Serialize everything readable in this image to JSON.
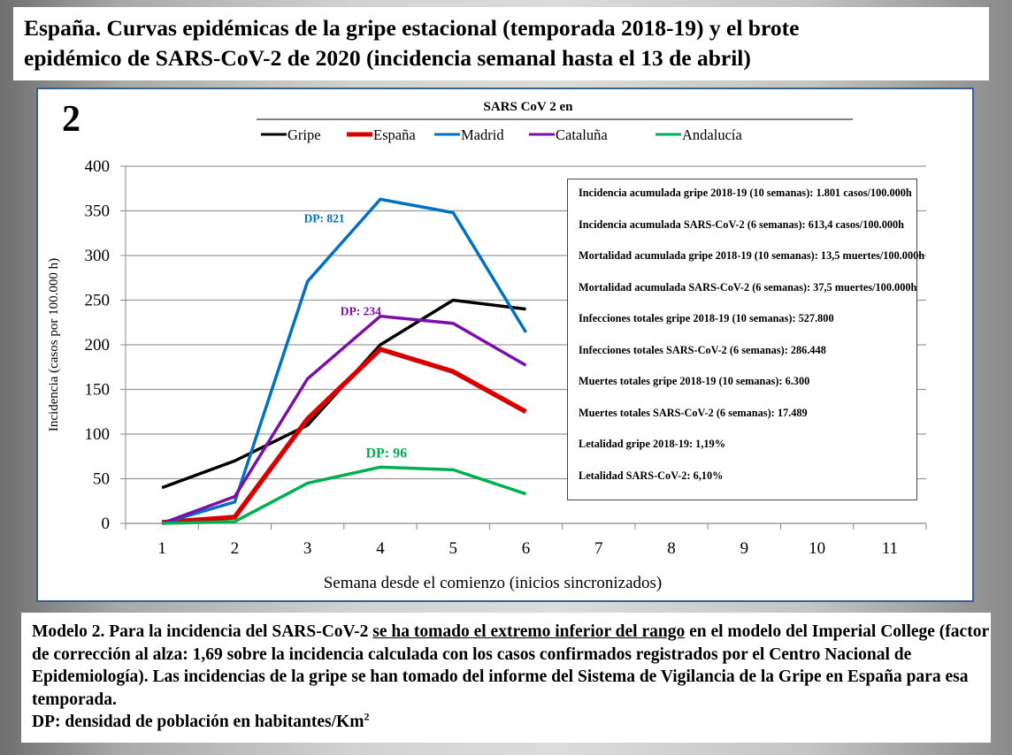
{
  "header": {
    "title_line1": "España. Curvas epidémicas de la gripe estacional (temporada 2018-19) y el brote",
    "title_line2": "epidémico de SARS-CoV-2  de 2020 (incidencia semanal hasta el 13 de abril)"
  },
  "panel_number": "2",
  "chart_data": {
    "type": "line",
    "title": "SARS CoV 2 en",
    "xlabel": "Semana desde el comienzo (inicios sincronizados)",
    "ylabel": "Incidencia (casos por 100.000 h)",
    "x": [
      1,
      2,
      3,
      4,
      5,
      6
    ],
    "xticks": [
      "1",
      "2",
      "3",
      "4",
      "5",
      "6",
      "7",
      "8",
      "9",
      "10",
      "11"
    ],
    "yticks": [
      "0",
      "50",
      "100",
      "150",
      "200",
      "250",
      "300",
      "350",
      "400"
    ],
    "xlim": [
      0.5,
      11.5
    ],
    "ylim": [
      0,
      400
    ],
    "grid": "horizontal",
    "legend_position": "top",
    "series": [
      {
        "name": "Gripe",
        "color": "#000000",
        "width": 3.5,
        "values": [
          40,
          70,
          110,
          200,
          250,
          240
        ]
      },
      {
        "name": "España",
        "color": "#d60000",
        "width": 5.5,
        "values": [
          1,
          7,
          117,
          195,
          170,
          125
        ]
      },
      {
        "name": "Madrid",
        "color": "#0070c0",
        "width": 3.5,
        "values": [
          0,
          24,
          271,
          363,
          348,
          214
        ]
      },
      {
        "name": "Cataluña",
        "color": "#7a10a8",
        "width": 3.5,
        "values": [
          0,
          30,
          162,
          232,
          224,
          177
        ]
      },
      {
        "name": "Andalucía",
        "color": "#00b050",
        "width": 3.5,
        "values": [
          0,
          2,
          45,
          63,
          60,
          33
        ]
      }
    ],
    "annotations": [
      {
        "text": "DP: 821",
        "series": "Madrid",
        "x": 2.95,
        "y": 337
      },
      {
        "text": "DP: 234",
        "series": "Cataluña",
        "x": 3.45,
        "y": 233
      },
      {
        "text": "DP: 96",
        "series": "Andalucía",
        "x": 3.8,
        "y": 74
      }
    ]
  },
  "info_box": {
    "lines": [
      "Incidencia acumulada gripe 2018-19 (10 semanas): 1.801 casos/100.000h",
      "Incidencia acumulada SARS-CoV-2 (6 semanas): 613,4 casos/100.000h",
      "Mortalidad acumulada gripe 2018-19 (10 semanas): 13,5 muertes/100.000h",
      "Mortalidad acumulada SARS-CoV-2 (6 semanas): 37,5 muertes/100.000h",
      "Infecciones totales gripe 2018-19 (10 semanas): 527.800",
      "Infecciones totales SARS-CoV-2 (6 semanas): 286.448",
      "Muertes totales gripe 2018-19 (10 semanas): 6.300",
      "Muertes totales SARS-CoV-2 (6 semanas): 17.489",
      "Letalidad gripe 2018-19: 1,19%",
      "Letalidad SARS-CoV-2: 6,10%"
    ]
  },
  "caption": {
    "part1": "Modelo 2. Para la incidencia del SARS-CoV-2 ",
    "underlined": "se ha tomado el extremo inferior del rango",
    "part2": " en el modelo del Imperial College (factor de corrección al alza: 1,69 sobre la incidencia calculada con los casos confirmados registrados por el Centro Nacional de Epidemiología). Las incidencias de la gripe se han tomado del informe del Sistema de Vigilancia de la Gripe en España para esa temporada.",
    "dp_note": "DP: densidad de población en habitantes/Km",
    "dp_sup": "2"
  }
}
